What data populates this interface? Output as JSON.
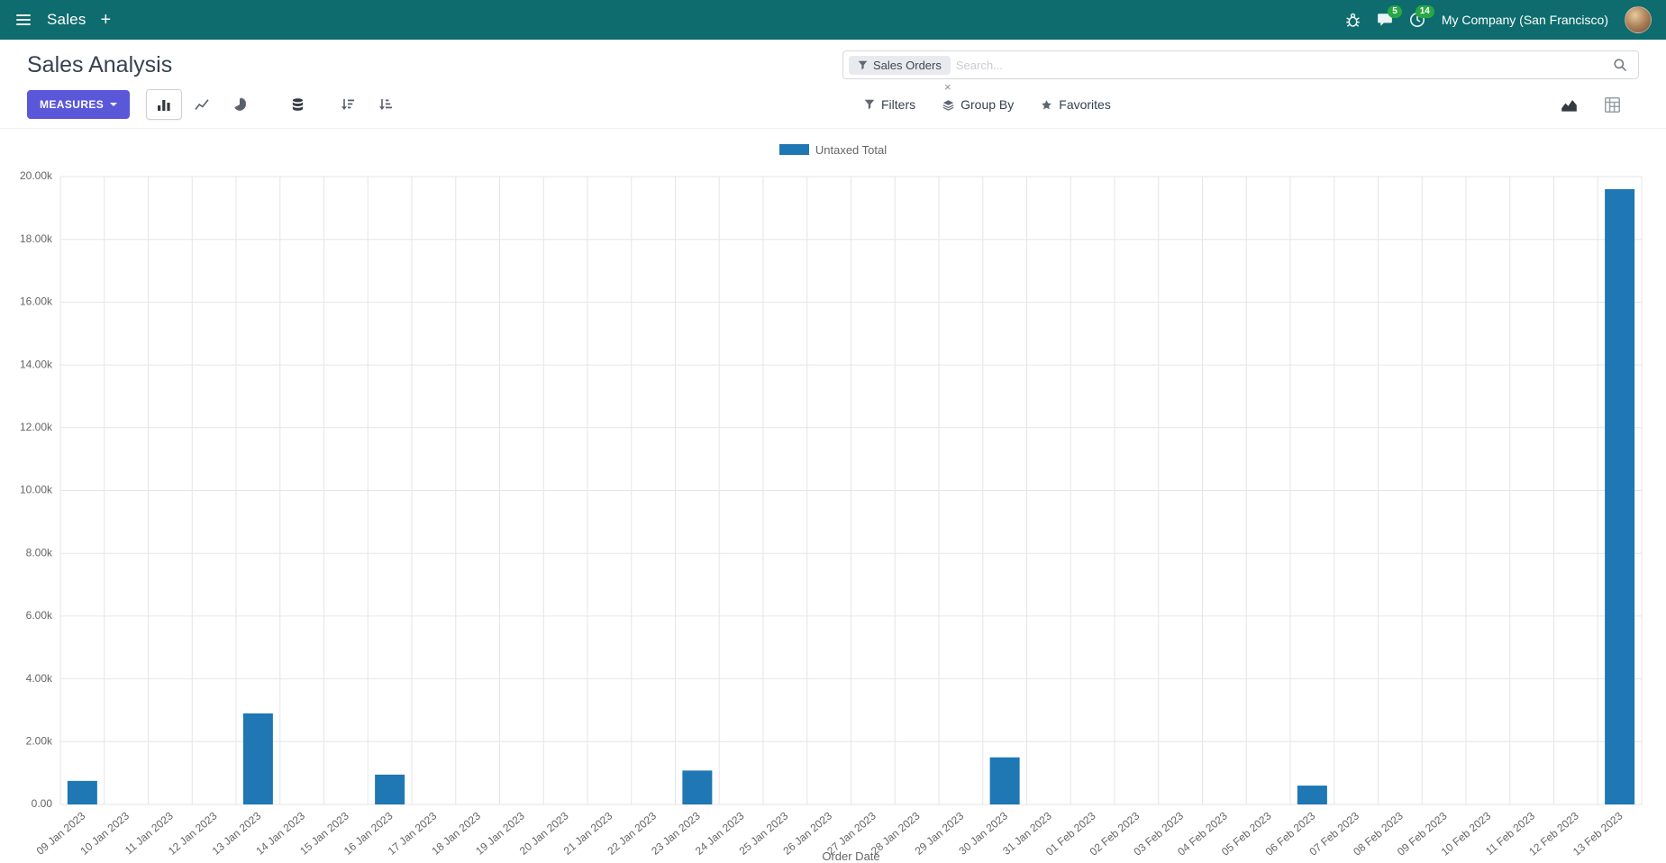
{
  "navbar": {
    "app_menu_label": "Sales",
    "plus_label": "+",
    "messages_badge": "5",
    "activities_badge": "14",
    "company": "My Company (San Francisco)"
  },
  "control_panel": {
    "title": "Sales Analysis",
    "search": {
      "facet": "Sales Orders",
      "facet_remove": "×",
      "placeholder": "Search..."
    },
    "measures_label": "MEASURES",
    "buttons": {
      "filters": "Filters",
      "group_by": "Group By",
      "favorites": "Favorites"
    }
  },
  "chart_data": {
    "type": "bar",
    "title": "",
    "color": "#1f77b4",
    "categories": [
      "09 Jan 2023",
      "10 Jan 2023",
      "11 Jan 2023",
      "12 Jan 2023",
      "13 Jan 2023",
      "14 Jan 2023",
      "15 Jan 2023",
      "16 Jan 2023",
      "17 Jan 2023",
      "18 Jan 2023",
      "19 Jan 2023",
      "20 Jan 2023",
      "21 Jan 2023",
      "22 Jan 2023",
      "23 Jan 2023",
      "24 Jan 2023",
      "25 Jan 2023",
      "26 Jan 2023",
      "27 Jan 2023",
      "28 Jan 2023",
      "29 Jan 2023",
      "30 Jan 2023",
      "31 Jan 2023",
      "01 Feb 2023",
      "02 Feb 2023",
      "03 Feb 2023",
      "04 Feb 2023",
      "05 Feb 2023",
      "06 Feb 2023",
      "07 Feb 2023",
      "08 Feb 2023",
      "09 Feb 2023",
      "10 Feb 2023",
      "11 Feb 2023",
      "12 Feb 2023",
      "13 Feb 2023"
    ],
    "series": [
      {
        "name": "Untaxed Total",
        "values": [
          750,
          0,
          0,
          0,
          2900,
          0,
          0,
          950,
          0,
          0,
          0,
          0,
          0,
          0,
          1080,
          0,
          0,
          0,
          0,
          0,
          0,
          1500,
          0,
          0,
          0,
          0,
          0,
          0,
          600,
          0,
          0,
          0,
          0,
          0,
          0,
          19600
        ]
      }
    ],
    "xlabel": "Order Date",
    "ylabel": "",
    "ylim": [
      0,
      20000
    ],
    "ytick_step": 2000,
    "ytick_format": "thousands-k",
    "grid": true,
    "legend_position": "top"
  },
  "colors": {
    "navbar_bg": "#0e6c6e",
    "primary_button": "#5a57d9",
    "badge": "#28a745",
    "bar": "#1f77b4"
  }
}
